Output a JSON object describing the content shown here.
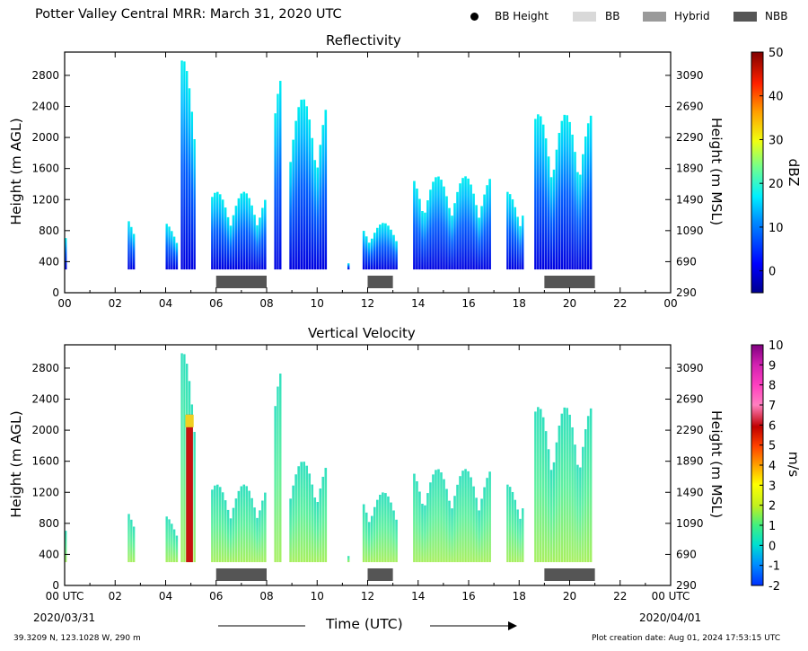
{
  "header": {
    "title": "Potter Valley Central MRR:  March 31, 2020 UTC",
    "legend": [
      {
        "label": "BB Height",
        "kind": "dot",
        "color": "#000000"
      },
      {
        "label": "BB",
        "kind": "box",
        "color": "#d9d9d9"
      },
      {
        "label": "Hybrid",
        "kind": "box",
        "color": "#9a9a9a"
      },
      {
        "label": "NBB",
        "kind": "box",
        "color": "#555555"
      }
    ]
  },
  "axes": {
    "agl_label": "Height (m AGL)",
    "msl_label": "Height (m MSL)",
    "x_label": "Time (UTC)",
    "x_ticks_top": [
      "00",
      "02",
      "04",
      "06",
      "08",
      "10",
      "12",
      "14",
      "16",
      "18",
      "20",
      "22",
      "00"
    ],
    "x_ticks_bottom": [
      "00 UTC",
      "02",
      "04",
      "06",
      "08",
      "10",
      "12",
      "14",
      "16",
      "18",
      "20",
      "22",
      "00 UTC"
    ],
    "date_start": "2020/03/31",
    "date_end": "2020/04/01",
    "agl_ticks": [
      "0",
      "400",
      "800",
      "1200",
      "1600",
      "2000",
      "2400",
      "2800"
    ],
    "msl_ticks": [
      "290",
      "690",
      "1090",
      "1490",
      "1890",
      "2290",
      "2690",
      "3090"
    ]
  },
  "footer": {
    "location": "39.3209 N, 123.1028 W, 290 m",
    "creation": "Plot creation date: Aug 01, 2024 17:53:15 UTC"
  },
  "chart_data": [
    {
      "type": "heatmap",
      "title": "Reflectivity",
      "colorbar_label": "dBZ",
      "colorbar_ticks": [
        0,
        10,
        20,
        30,
        40,
        50
      ],
      "colorbar_range": [
        -5,
        50
      ],
      "x_range_hours": [
        0,
        24
      ],
      "y_range_m_agl": [
        0,
        3100
      ],
      "echo_columns": [
        {
          "start_h": 0.0,
          "end_h": 0.1,
          "top_m": 850
        },
        {
          "start_h": 2.5,
          "end_h": 2.8,
          "top_m": 1000
        },
        {
          "start_h": 4.0,
          "end_h": 4.5,
          "top_m": 900
        },
        {
          "start_h": 4.6,
          "end_h": 5.2,
          "top_m": 3000
        },
        {
          "start_h": 5.8,
          "end_h": 8.0,
          "top_m": 1300
        },
        {
          "start_h": 8.3,
          "end_h": 8.6,
          "top_m": 2800
        },
        {
          "start_h": 8.9,
          "end_h": 10.4,
          "top_m": 2500
        },
        {
          "start_h": 11.2,
          "end_h": 11.3,
          "top_m": 420
        },
        {
          "start_h": 11.8,
          "end_h": 13.2,
          "top_m": 900
        },
        {
          "start_h": 13.8,
          "end_h": 16.9,
          "top_m": 1500
        },
        {
          "start_h": 17.5,
          "end_h": 18.2,
          "top_m": 1300
        },
        {
          "start_h": 18.6,
          "end_h": 20.9,
          "top_m": 2300
        }
      ],
      "bright_band_type_bars": [
        {
          "type": "NBB",
          "start_h": 6.0,
          "end_h": 8.0
        },
        {
          "type": "NBB",
          "start_h": 12.0,
          "end_h": 13.0
        },
        {
          "type": "NBB",
          "start_h": 19.0,
          "end_h": 21.0
        }
      ]
    },
    {
      "type": "heatmap",
      "title": "Vertical Velocity",
      "colorbar_label": "m/s",
      "colorbar_ticks": [
        -2,
        -1,
        0,
        1,
        2,
        3,
        4,
        5,
        6,
        7,
        8,
        9,
        10
      ],
      "colorbar_range": [
        -2,
        10
      ],
      "x_range_hours": [
        0,
        24
      ],
      "y_range_m_agl": [
        0,
        3100
      ],
      "echo_columns": [
        {
          "start_h": 0.0,
          "end_h": 0.1,
          "top_m": 850
        },
        {
          "start_h": 2.5,
          "end_h": 2.8,
          "top_m": 1000
        },
        {
          "start_h": 4.0,
          "end_h": 4.5,
          "top_m": 900
        },
        {
          "start_h": 4.6,
          "end_h": 5.2,
          "top_m": 3000
        },
        {
          "start_h": 5.8,
          "end_h": 8.0,
          "top_m": 1300
        },
        {
          "start_h": 8.3,
          "end_h": 8.6,
          "top_m": 2800
        },
        {
          "start_h": 8.9,
          "end_h": 10.4,
          "top_m": 1600
        },
        {
          "start_h": 11.2,
          "end_h": 11.3,
          "top_m": 420
        },
        {
          "start_h": 11.8,
          "end_h": 13.2,
          "top_m": 1200
        },
        {
          "start_h": 13.8,
          "end_h": 16.9,
          "top_m": 1500
        },
        {
          "start_h": 17.5,
          "end_h": 18.2,
          "top_m": 1300
        },
        {
          "start_h": 18.6,
          "end_h": 20.9,
          "top_m": 2300
        }
      ],
      "bright_band_type_bars": [
        {
          "type": "NBB",
          "start_h": 6.0,
          "end_h": 8.0
        },
        {
          "type": "NBB",
          "start_h": 12.0,
          "end_h": 13.0
        },
        {
          "type": "NBB",
          "start_h": 19.0,
          "end_h": 21.0
        }
      ]
    }
  ]
}
